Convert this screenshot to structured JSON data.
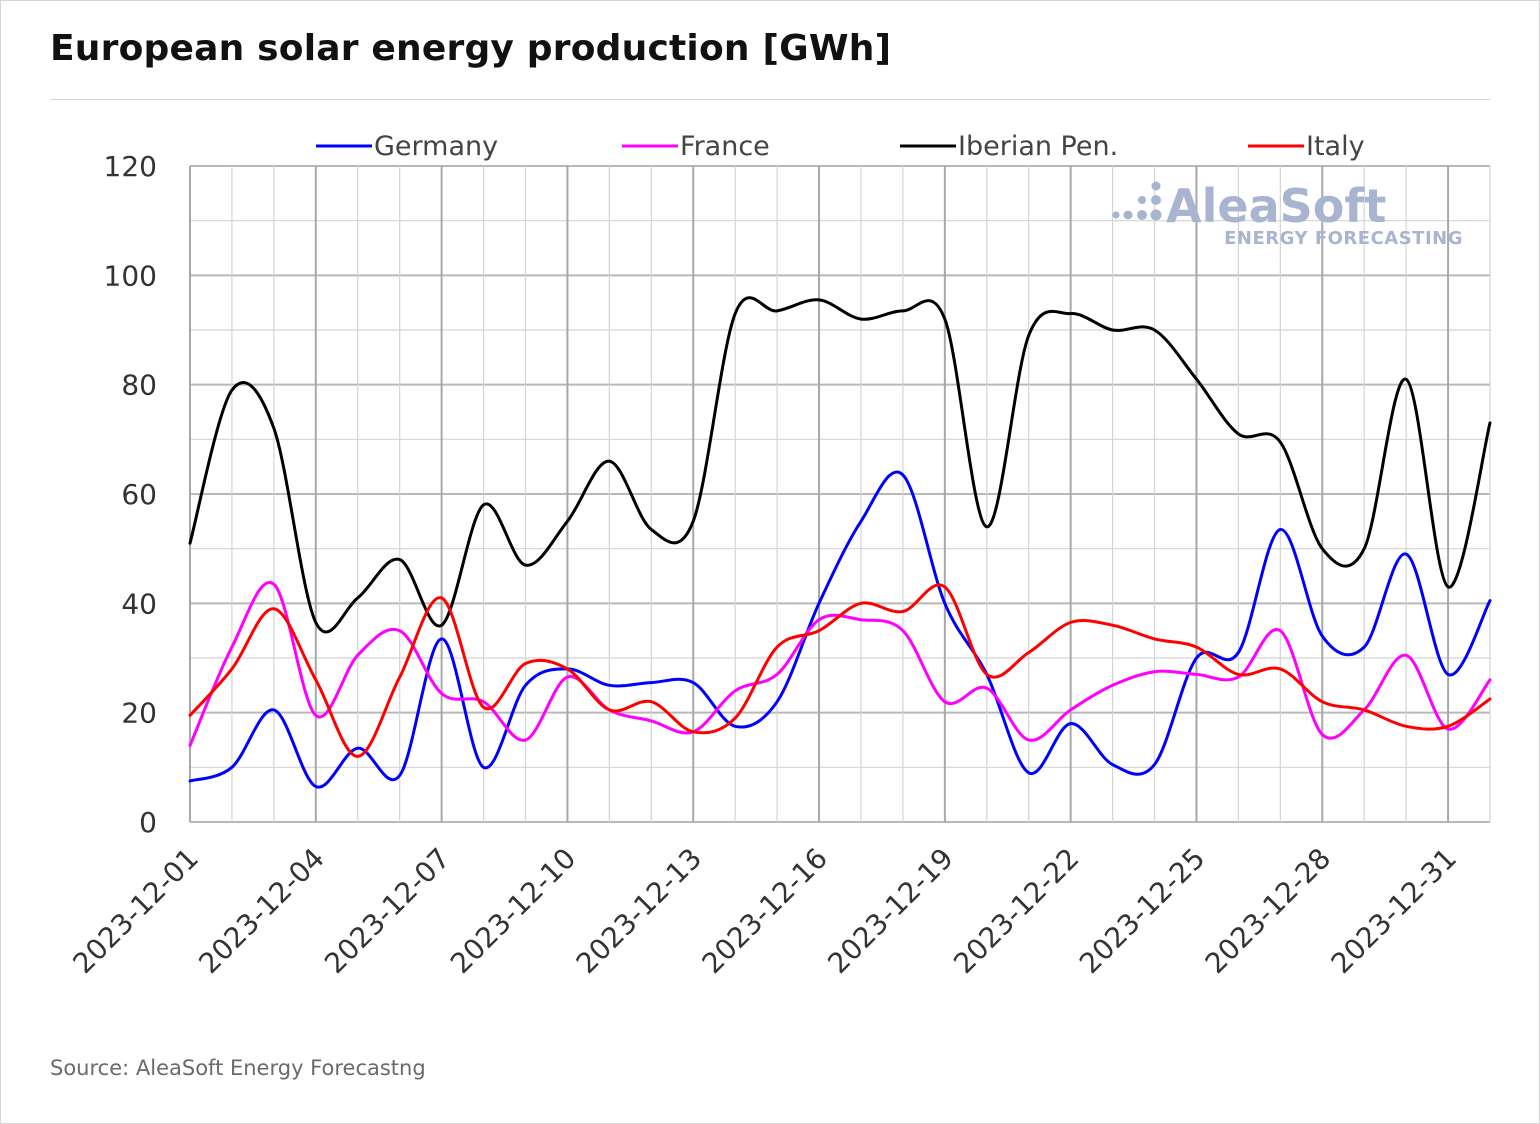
{
  "title": "European solar energy production [GWh]",
  "source": "Source: AleaSoft Energy Forecastng",
  "watermark": {
    "brand": "AleaSoft",
    "tagline": "ENERGY FORECASTING"
  },
  "chart_data": {
    "type": "line",
    "title": "European solar energy production [GWh]",
    "xlabel": "",
    "ylabel": "",
    "ylim": [
      0,
      120
    ],
    "yticks": [
      0,
      20,
      40,
      60,
      80,
      100,
      120
    ],
    "grid": true,
    "legend_position": "top",
    "x": [
      "2023-12-01",
      "2023-12-02",
      "2023-12-03",
      "2023-12-04",
      "2023-12-05",
      "2023-12-06",
      "2023-12-07",
      "2023-12-08",
      "2023-12-09",
      "2023-12-10",
      "2023-12-11",
      "2023-12-12",
      "2023-12-13",
      "2023-12-14",
      "2023-12-15",
      "2023-12-16",
      "2023-12-17",
      "2023-12-18",
      "2023-12-19",
      "2023-12-20",
      "2023-12-21",
      "2023-12-22",
      "2023-12-23",
      "2023-12-24",
      "2023-12-25",
      "2023-12-26",
      "2023-12-27",
      "2023-12-28",
      "2023-12-29",
      "2023-12-30",
      "2023-12-31",
      "2024-01-01"
    ],
    "xtick_labels": [
      "2023-12-01",
      "2023-12-04",
      "2023-12-07",
      "2023-12-10",
      "2023-12-13",
      "2023-12-16",
      "2023-12-19",
      "2023-12-22",
      "2023-12-25",
      "2023-12-28",
      "2023-12-31"
    ],
    "series": [
      {
        "name": "Germany",
        "color": "#0000ff",
        "values": [
          7.5,
          10,
          20.5,
          6.5,
          13.5,
          8.5,
          33.5,
          10,
          25,
          28,
          25,
          25.5,
          25.5,
          17.5,
          22,
          40,
          55,
          63.5,
          40,
          27,
          9,
          18,
          10.5,
          10.5,
          30,
          31,
          53.5,
          34,
          32,
          49,
          27,
          40.5
        ]
      },
      {
        "name": "France",
        "color": "#ff00ff",
        "values": [
          14,
          32,
          43.5,
          19.5,
          30.5,
          35,
          23.5,
          22,
          15,
          26.5,
          20.5,
          18.5,
          16.5,
          24,
          27,
          37,
          37,
          35,
          22,
          24.5,
          15,
          20.5,
          25,
          27.5,
          27,
          26.5,
          35,
          16,
          20.5,
          30.5,
          17,
          26
        ]
      },
      {
        "name": "Iberian Pen.",
        "color": "#000000",
        "values": [
          51,
          79,
          72,
          36.5,
          41,
          48,
          36,
          58,
          47,
          55,
          66,
          53.5,
          55,
          93,
          93.5,
          95.5,
          92,
          93.5,
          92,
          54,
          89,
          93,
          90,
          90,
          81,
          71,
          69.5,
          50,
          50,
          81,
          43,
          73
        ]
      },
      {
        "name": "Italy",
        "color": "#ff0000",
        "values": [
          19.5,
          28,
          39,
          26,
          12,
          26.5,
          41,
          21,
          29,
          28,
          20.5,
          22,
          16.5,
          19,
          32,
          35,
          40,
          38.5,
          43,
          27,
          31,
          36.5,
          36,
          33.5,
          32,
          27,
          28,
          22,
          20.5,
          17.5,
          17.5,
          22.5
        ]
      }
    ]
  }
}
